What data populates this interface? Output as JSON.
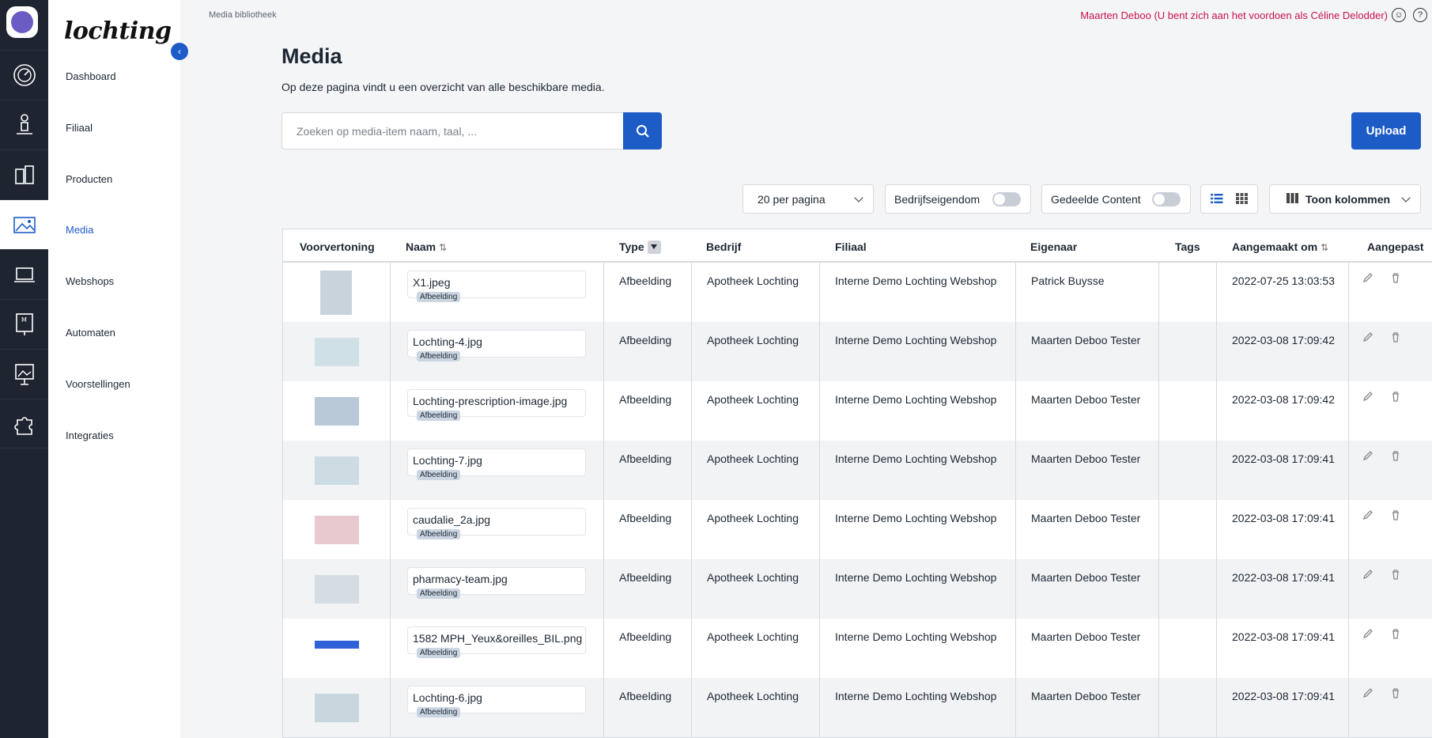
{
  "app": {
    "brand": "lochting"
  },
  "breadcrumb": "Media bibliotheek",
  "user_notice": "Maarten Deboo (U bent zich aan het voordoen als Céline Delodder)",
  "nav": [
    {
      "label": "Dashboard",
      "active": false
    },
    {
      "label": "Filiaal",
      "active": false
    },
    {
      "label": "Producten",
      "active": false
    },
    {
      "label": "Media",
      "active": true
    },
    {
      "label": "Webshops",
      "active": false
    },
    {
      "label": "Automaten",
      "active": false
    },
    {
      "label": "Voorstellingen",
      "active": false
    },
    {
      "label": "Integraties",
      "active": false
    }
  ],
  "page": {
    "title": "Media",
    "subtitle": "Op deze pagina vindt u een overzicht van alle beschikbare media."
  },
  "search": {
    "placeholder": "Zoeken op media-item naam, taal, ..."
  },
  "upload_label": "Upload",
  "controls": {
    "per_page": "20 per pagina",
    "company_owned": "Bedrijfseigendom",
    "shared_content": "Gedeelde Content",
    "columns": "Toon kolommen"
  },
  "table": {
    "headers": [
      "Voorvertoning",
      "Naam",
      "Type",
      "Bedrijf",
      "Filiaal",
      "Eigenaar",
      "Tags",
      "Aangemaakt om",
      "Aangepast"
    ],
    "rows": [
      {
        "name": "X1.jpeg",
        "tag": "Afbeelding",
        "type": "Afbeelding",
        "company": "Apotheek Lochting",
        "branch": "Interne Demo Lochting Webshop",
        "owner": "Patrick Buysse",
        "created": "2022-07-25 13:03:53"
      },
      {
        "name": "Lochting-4.jpg",
        "tag": "Afbeelding",
        "type": "Afbeelding",
        "company": "Apotheek Lochting",
        "branch": "Interne Demo Lochting Webshop",
        "owner": "Maarten Deboo Tester",
        "created": "2022-03-08 17:09:42"
      },
      {
        "name": "Lochting-prescription-image.jpg",
        "tag": "Afbeelding",
        "type": "Afbeelding",
        "company": "Apotheek Lochting",
        "branch": "Interne Demo Lochting Webshop",
        "owner": "Maarten Deboo Tester",
        "created": "2022-03-08 17:09:42"
      },
      {
        "name": "Lochting-7.jpg",
        "tag": "Afbeelding",
        "type": "Afbeelding",
        "company": "Apotheek Lochting",
        "branch": "Interne Demo Lochting Webshop",
        "owner": "Maarten Deboo Tester",
        "created": "2022-03-08 17:09:41"
      },
      {
        "name": "caudalie_2a.jpg",
        "tag": "Afbeelding",
        "type": "Afbeelding",
        "company": "Apotheek Lochting",
        "branch": "Interne Demo Lochting Webshop",
        "owner": "Maarten Deboo Tester",
        "created": "2022-03-08 17:09:41"
      },
      {
        "name": "pharmacy-team.jpg",
        "tag": "Afbeelding",
        "type": "Afbeelding",
        "company": "Apotheek Lochting",
        "branch": "Interne Demo Lochting Webshop",
        "owner": "Maarten Deboo Tester",
        "created": "2022-03-08 17:09:41"
      },
      {
        "name": "1582 MPH_Yeux&oreilles_BIL.png",
        "tag": "Afbeelding",
        "type": "Afbeelding",
        "company": "Apotheek Lochting",
        "branch": "Interne Demo Lochting Webshop",
        "owner": "Maarten Deboo Tester",
        "created": "2022-03-08 17:09:41"
      },
      {
        "name": "Lochting-6.jpg",
        "tag": "Afbeelding",
        "type": "Afbeelding",
        "company": "Apotheek Lochting",
        "branch": "Interne Demo Lochting Webshop",
        "owner": "Maarten Deboo Tester",
        "created": "2022-03-08 17:09:41"
      }
    ]
  },
  "colors": {
    "accent": "#1d5bc7",
    "notice": "#c8134b",
    "rail": "#1e2530"
  }
}
